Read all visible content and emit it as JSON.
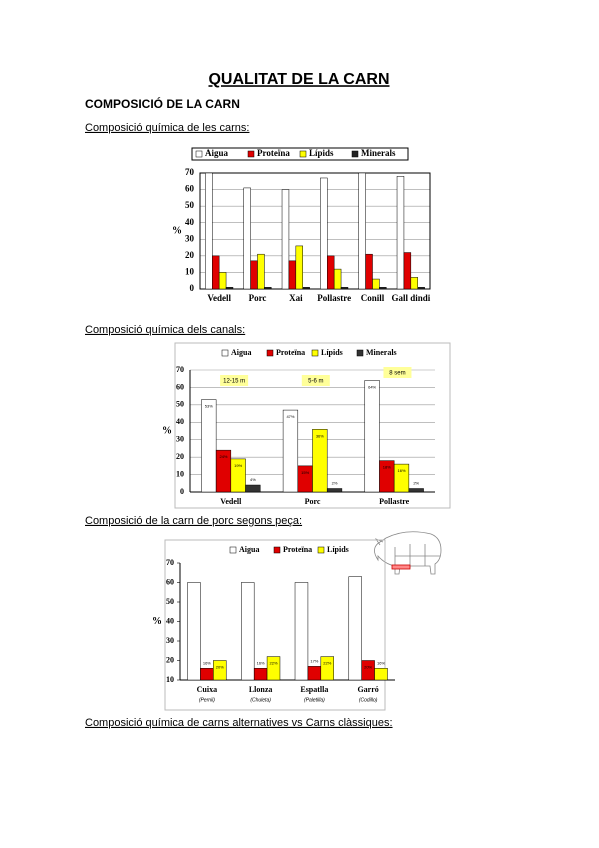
{
  "title": "QUALITAT DE LA CARN",
  "heading": "COMPOSICIÓ DE LA CARN",
  "sections": [
    {
      "caption": "Composició química de les carns:",
      "chart": {
        "type": "bar",
        "y_label": "%",
        "grid": true,
        "categories": [
          "Vedell",
          "Porc",
          "Xai",
          "Pollastre",
          "Conill",
          "Gall dindi"
        ],
        "ylim": [
          0,
          70
        ],
        "yticks": [
          0,
          10,
          20,
          30,
          40,
          50,
          60,
          70
        ],
        "series": [
          {
            "name": "Aigua",
            "color": "#ffffff",
            "values": [
              70,
              61,
              60,
              67,
              70,
              68
            ]
          },
          {
            "name": "Proteïna",
            "color": "#e00000",
            "values": [
              20,
              17,
              17,
              20,
              21,
              22
            ]
          },
          {
            "name": "Lípids",
            "color": "#ffff00",
            "values": [
              10,
              21,
              26,
              12,
              6,
              7
            ]
          },
          {
            "name": "Minerals",
            "color": "#222222",
            "values": [
              1,
              1,
              1,
              1,
              1,
              1
            ]
          }
        ]
      }
    },
    {
      "caption": "Composició química dels canals:",
      "chart": {
        "type": "bar",
        "y_label": "%",
        "grid": true,
        "categories": [
          "Vedell",
          "Porc",
          "Pollastre"
        ],
        "annotations": [
          "12-15 m",
          "5-6 m",
          "8 sem"
        ],
        "ylim": [
          0,
          70
        ],
        "yticks": [
          0,
          10,
          20,
          30,
          40,
          50,
          60,
          70
        ],
        "series": [
          {
            "name": "Aigua",
            "color": "#ffffff",
            "values": [
              53,
              47,
              64
            ],
            "value_labels": [
              "53%",
              "47%",
              "64%"
            ]
          },
          {
            "name": "Proteïna",
            "color": "#e00000",
            "values": [
              24,
              15,
              18
            ],
            "value_labels": [
              "24%",
              "15%",
              "18%"
            ]
          },
          {
            "name": "Lípids",
            "color": "#ffff00",
            "values": [
              19,
              36,
              16
            ],
            "value_labels": [
              "19%",
              "36%",
              "16%"
            ]
          },
          {
            "name": "Minerals",
            "color": "#333333",
            "values": [
              4,
              2,
              2
            ],
            "value_labels": [
              "4%",
              "2%",
              "2%"
            ]
          }
        ]
      }
    },
    {
      "caption": "Composició de la carn de porc segons peça:",
      "chart": {
        "type": "bar",
        "y_label": "%",
        "grid": false,
        "categories": [
          "Cuixa",
          "Llonza",
          "Espatlla",
          "Garró"
        ],
        "sublabels": [
          "(Pernil)",
          "(Chuleta)",
          "(Paletilla)",
          "(Codillo)"
        ],
        "ylim": [
          10,
          70
        ],
        "yticks": [
          10,
          20,
          30,
          40,
          50,
          60,
          70
        ],
        "series": [
          {
            "name": "Aigua",
            "color": "#ffffff",
            "values": [
              60,
              60,
              60,
              63
            ]
          },
          {
            "name": "Proteïna",
            "color": "#e00000",
            "values": [
              16,
              16,
              17,
              20
            ],
            "value_labels": [
              "16%",
              "16%",
              "17%",
              "20%"
            ]
          },
          {
            "name": "Lípids",
            "color": "#ffff00",
            "values": [
              20,
              22,
              22,
              16
            ],
            "value_labels": [
              "20%",
              "22%",
              "22%",
              "16%"
            ]
          }
        ]
      }
    },
    {
      "caption": "Composició química de carns alternatives vs Carns clàssiques:"
    }
  ]
}
